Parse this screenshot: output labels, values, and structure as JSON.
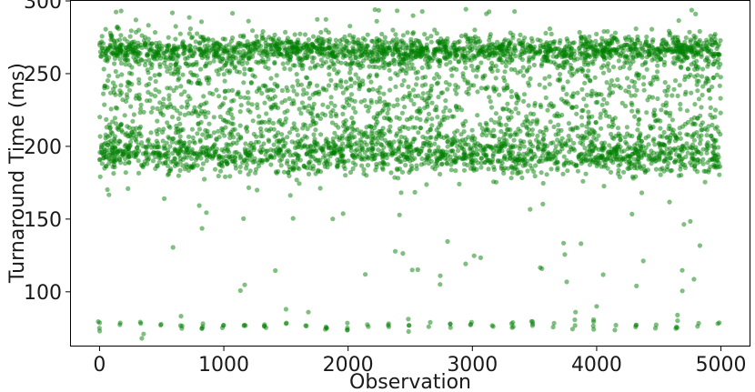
{
  "chart_data": {
    "type": "scatter",
    "title": "",
    "xlabel": "Observation",
    "ylabel": "Turnaround Time (ms)",
    "xlim": [
      -230,
      5230
    ],
    "ylim": [
      63,
      300
    ],
    "xticks": [
      0,
      1000,
      2000,
      3000,
      4000,
      5000
    ],
    "yticks": [
      100,
      150,
      200,
      250,
      300
    ],
    "xtick_labels": [
      "0",
      "1000",
      "2000",
      "3000",
      "4000",
      "5000"
    ],
    "ytick_labels": [
      "100",
      "150",
      "200",
      "250",
      "300"
    ],
    "grid": false,
    "legend": "none",
    "marker_color": "#008000",
    "marker_alpha": 0.5,
    "n_points": 5000,
    "clusters": [
      {
        "role": "upper band",
        "center_y": 266,
        "spread_y": 5,
        "share": 0.36
      },
      {
        "role": "lower band",
        "center_y": 195,
        "spread_y": 7,
        "share": 0.34
      },
      {
        "role": "between bands",
        "range_y": [
          205,
          258
        ],
        "share": 0.24
      },
      {
        "role": "sparse outliers",
        "range_y": [
          100,
          295
        ],
        "share": 0.02
      },
      {
        "role": "periodic low group",
        "center_y": 77,
        "spread_y": 2,
        "period_x": 166
      }
    ]
  }
}
